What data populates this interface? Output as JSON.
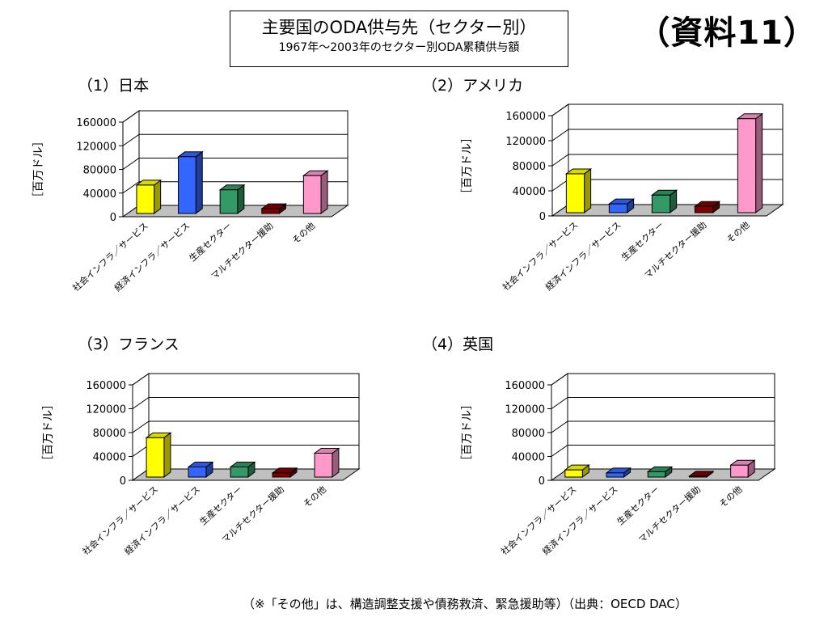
{
  "header": {
    "title": "主要国のODA供与先（セクター別）",
    "subtitle": "1967年～2003年のセクター別ODA累積供与額",
    "doc_label": "（資料11）"
  },
  "footnote": "（※「その他」は、構造調整支援や債務救済、緊急援助等）（出典：OECD DAC）",
  "chart_data": [
    {
      "type": "bar",
      "title": "（1）日本",
      "ylabel": "［百万ドル］",
      "ylim": [
        0,
        160000
      ],
      "yticks": [
        "0",
        "40000",
        "80000",
        "120000",
        "160000"
      ],
      "categories": [
        "社会インフラ／サービス",
        "経済インフラ／サービス",
        "生産セクター",
        "マルチセクター援助",
        "その他"
      ],
      "values": [
        48000,
        96000,
        40000,
        8000,
        64000
      ],
      "colors": [
        "#ffff00",
        "#3366ff",
        "#339966",
        "#800000",
        "#ff99cc"
      ]
    },
    {
      "type": "bar",
      "title": "（2）アメリカ",
      "ylabel": "［百万ドル］",
      "ylim": [
        0,
        160000
      ],
      "yticks": [
        "0",
        "40000",
        "80000",
        "120000",
        "160000"
      ],
      "categories": [
        "社会インフラ／サービス",
        "経済インフラ／サービス",
        "生産セクター",
        "マルチセクター援助",
        "その他"
      ],
      "values": [
        62000,
        14000,
        28000,
        10000,
        150000
      ],
      "colors": [
        "#ffff00",
        "#3366ff",
        "#339966",
        "#800000",
        "#ff99cc"
      ]
    },
    {
      "type": "bar",
      "title": "（3）フランス",
      "ylabel": "［百万ドル］",
      "ylim": [
        0,
        160000
      ],
      "yticks": [
        "0",
        "40000",
        "80000",
        "120000",
        "160000"
      ],
      "categories": [
        "社会インフラ／サービス",
        "経済インフラ／サービス",
        "生産セクター",
        "マルチセクター援助",
        "その他"
      ],
      "values": [
        66000,
        17000,
        17000,
        7000,
        40000
      ],
      "colors": [
        "#ffff00",
        "#3366ff",
        "#339966",
        "#800000",
        "#ff99cc"
      ]
    },
    {
      "type": "bar",
      "title": "（4）英国",
      "ylabel": "［百万ドル］",
      "ylim": [
        0,
        160000
      ],
      "yticks": [
        "0",
        "40000",
        "80000",
        "120000",
        "160000"
      ],
      "categories": [
        "社会インフラ／サービス",
        "経済インフラ／サービス",
        "生産セクター",
        "マルチセクター援助",
        "その他"
      ],
      "values": [
        12000,
        7000,
        9000,
        1500,
        20000
      ],
      "colors": [
        "#ffff00",
        "#3366ff",
        "#339966",
        "#800000",
        "#ff99cc"
      ]
    }
  ]
}
